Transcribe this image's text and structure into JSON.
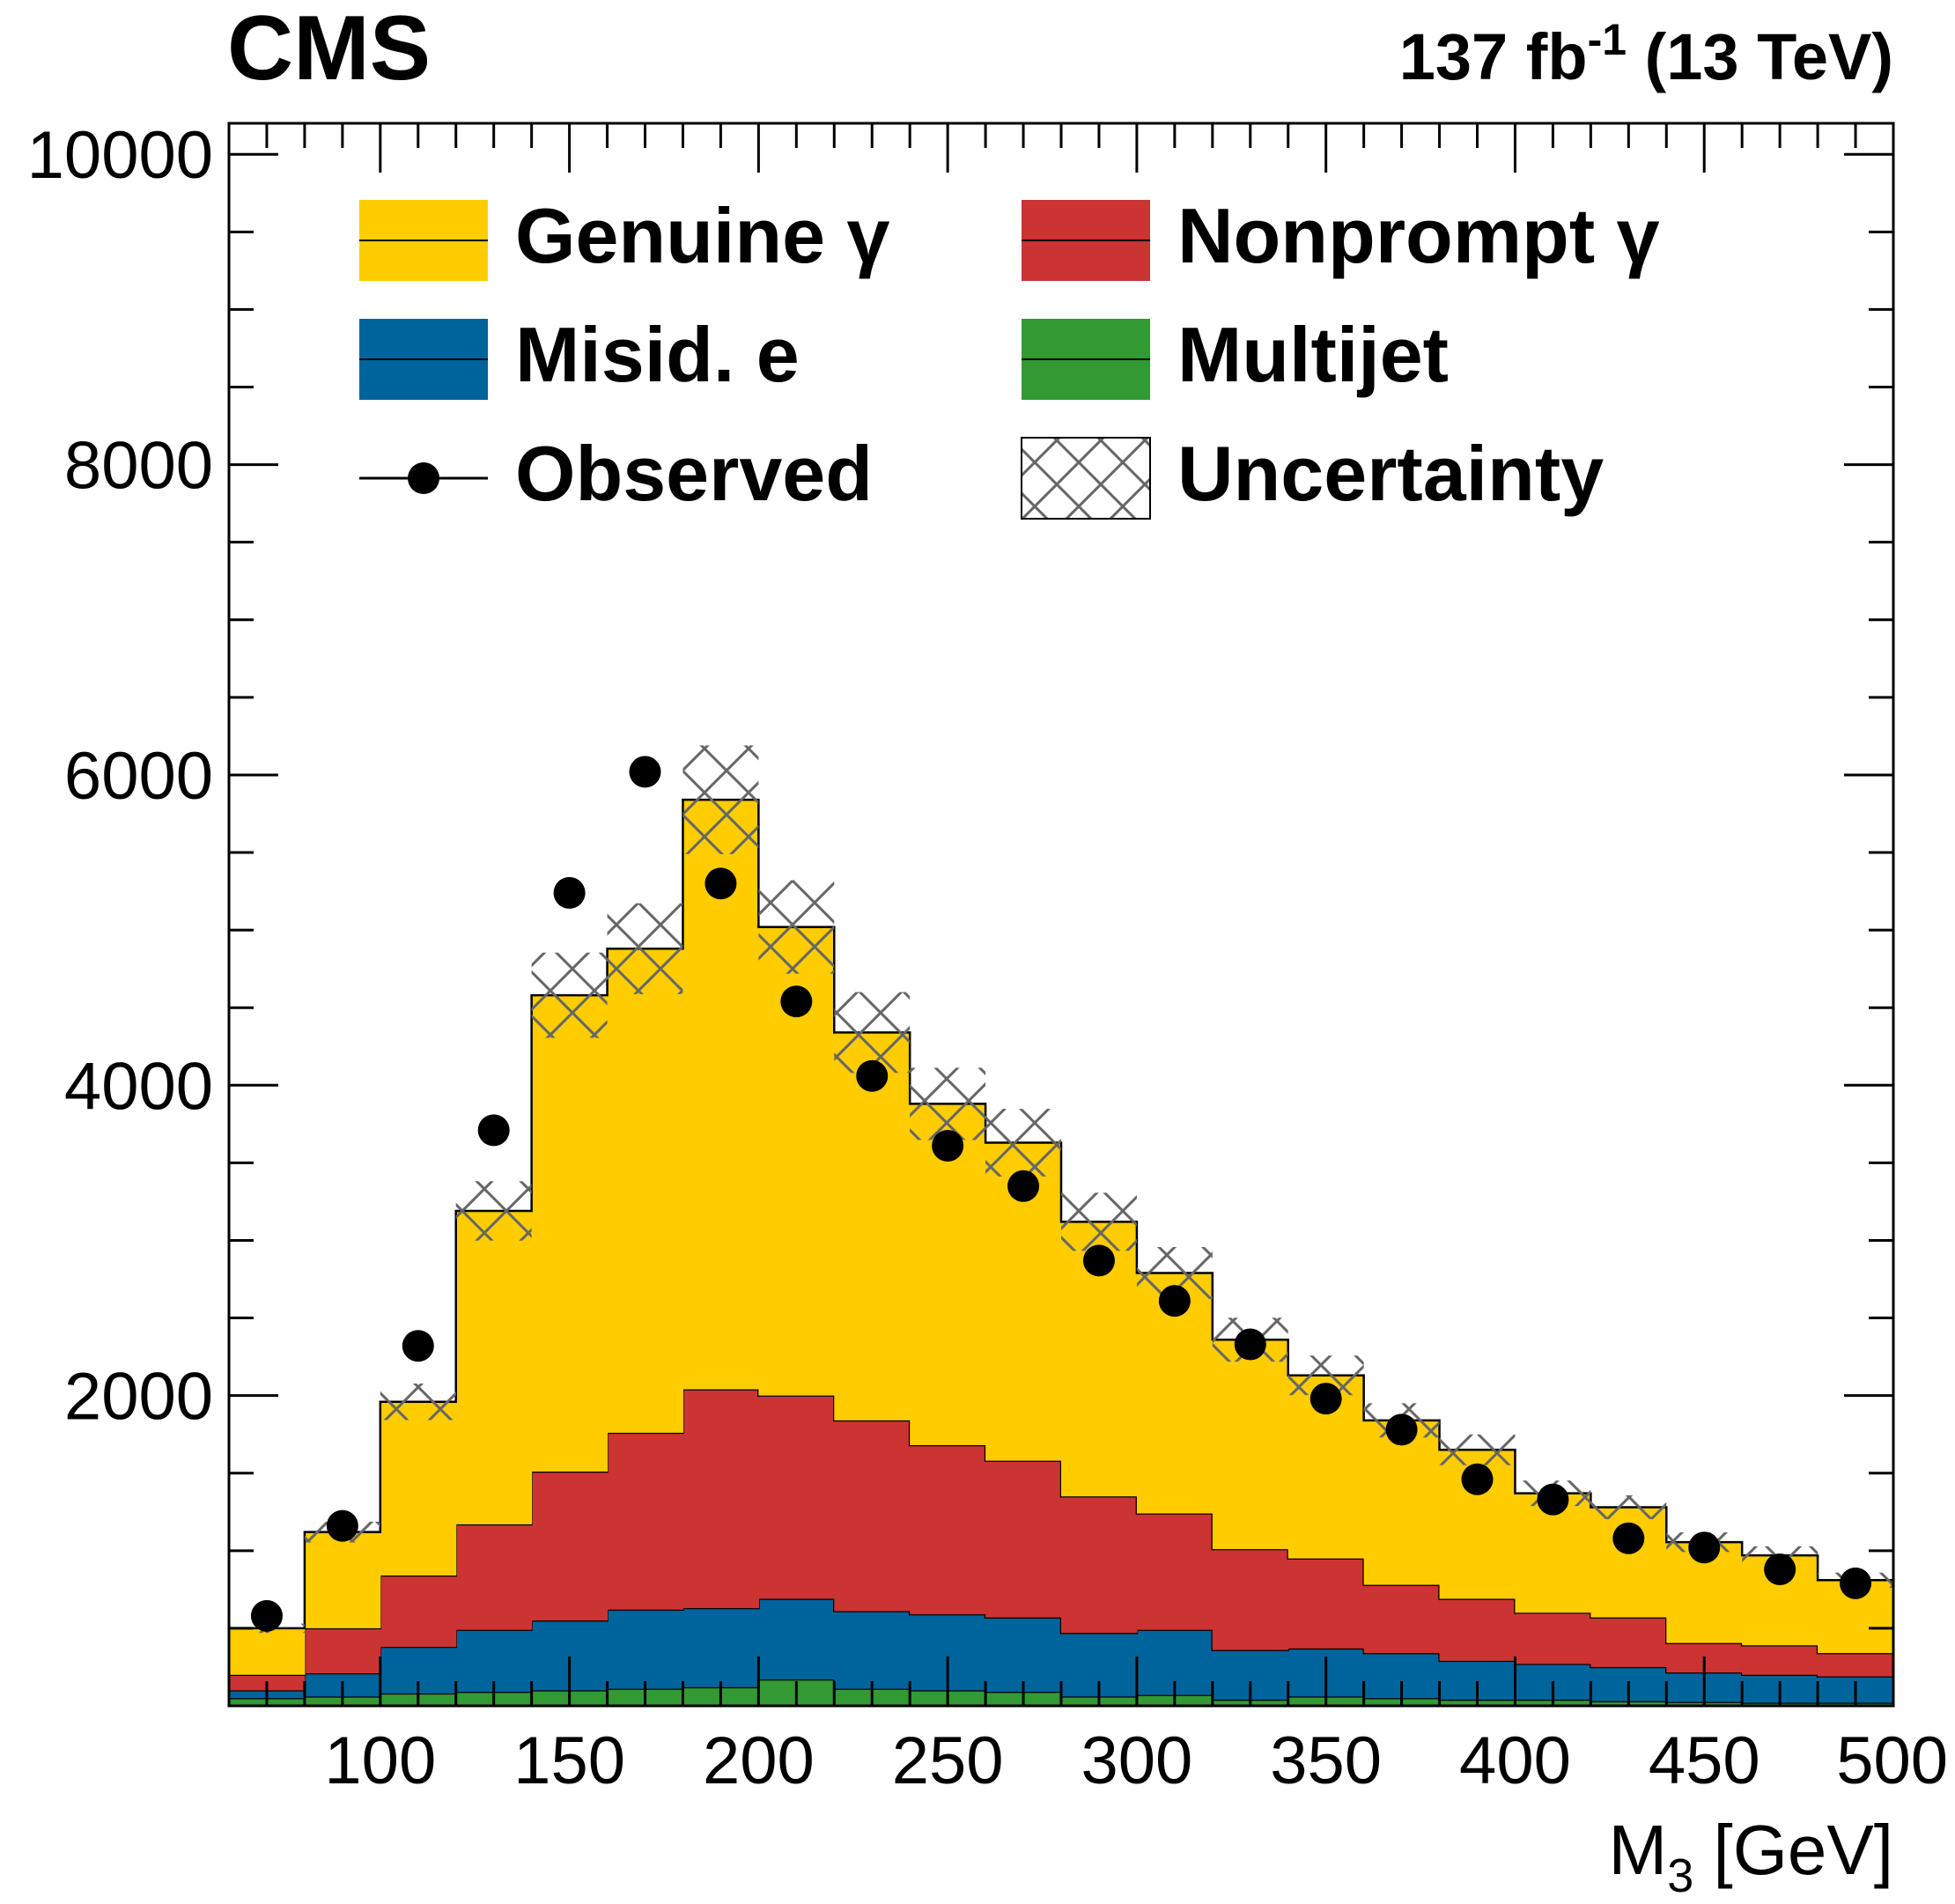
{
  "header": {
    "experiment": "CMS",
    "lumi_value": "137 fb",
    "lumi_exponent": "-1",
    "lumi_energy": " (13 TeV)"
  },
  "colors": {
    "genuine": "#FFCC00",
    "nonprompt": "#CC3333",
    "misid": "#00649C",
    "multijet": "#339933",
    "hatch": "#666666"
  },
  "legend": {
    "genuine": "Genuine γ",
    "nonprompt": "Nonprompt γ",
    "misid": "Misid. e",
    "multijet": "Multijet",
    "observed": "Observed",
    "uncertainty": "Uncertainty"
  },
  "chart_data": {
    "type": "bar",
    "stacked": true,
    "xlabel_main": "M",
    "xlabel_sub": "3",
    "xlabel_unit": " [GeV]",
    "ylabel": "",
    "xlim": [
      60,
      500
    ],
    "ylim": [
      0,
      10200
    ],
    "x_ticks": [
      100,
      150,
      200,
      250,
      300,
      350,
      400,
      450,
      500
    ],
    "y_ticks": [
      2000,
      4000,
      6000,
      8000,
      10000
    ],
    "bin_edges": [
      60,
      80,
      100,
      120,
      140,
      160,
      180,
      200,
      220,
      240,
      260,
      280,
      300,
      320,
      340,
      360,
      380,
      400,
      420,
      440,
      460,
      480,
      500
    ],
    "series": [
      {
        "name": "Multijet",
        "key": "multijet",
        "values": [
          50,
          60,
          80,
          90,
          100,
          110,
          120,
          170,
          110,
          100,
          90,
          60,
          70,
          40,
          60,
          50,
          40,
          40,
          30,
          25,
          20,
          20
        ]
      },
      {
        "name": "Misid. e",
        "key": "misid",
        "values": [
          50,
          150,
          300,
          400,
          450,
          510,
          510,
          520,
          500,
          490,
          480,
          410,
          420,
          320,
          310,
          290,
          250,
          230,
          220,
          190,
          180,
          170
        ]
      },
      {
        "name": "Nonprompt γ",
        "key": "nonprompt",
        "values": [
          100,
          290,
          460,
          680,
          960,
          1140,
          1410,
          1310,
          1230,
          1090,
          1010,
          880,
          750,
          650,
          580,
          440,
          400,
          330,
          320,
          190,
          190,
          150
        ]
      },
      {
        "name": "Genuine γ",
        "key": "genuine",
        "values": [
          300,
          620,
          1120,
          2020,
          3070,
          3120,
          3800,
          3020,
          2500,
          2200,
          2050,
          1770,
          1550,
          1350,
          1180,
          1060,
          960,
          770,
          710,
          650,
          580,
          470
        ]
      }
    ],
    "observed": [
      580,
      1160,
      2320,
      3710,
      5240,
      6020,
      5300,
      4540,
      4060,
      3610,
      3350,
      2870,
      2610,
      2330,
      1980,
      1780,
      1460,
      1330,
      1080,
      1020,
      880,
      790
    ],
    "uncertainty_frac": 0.06
  }
}
